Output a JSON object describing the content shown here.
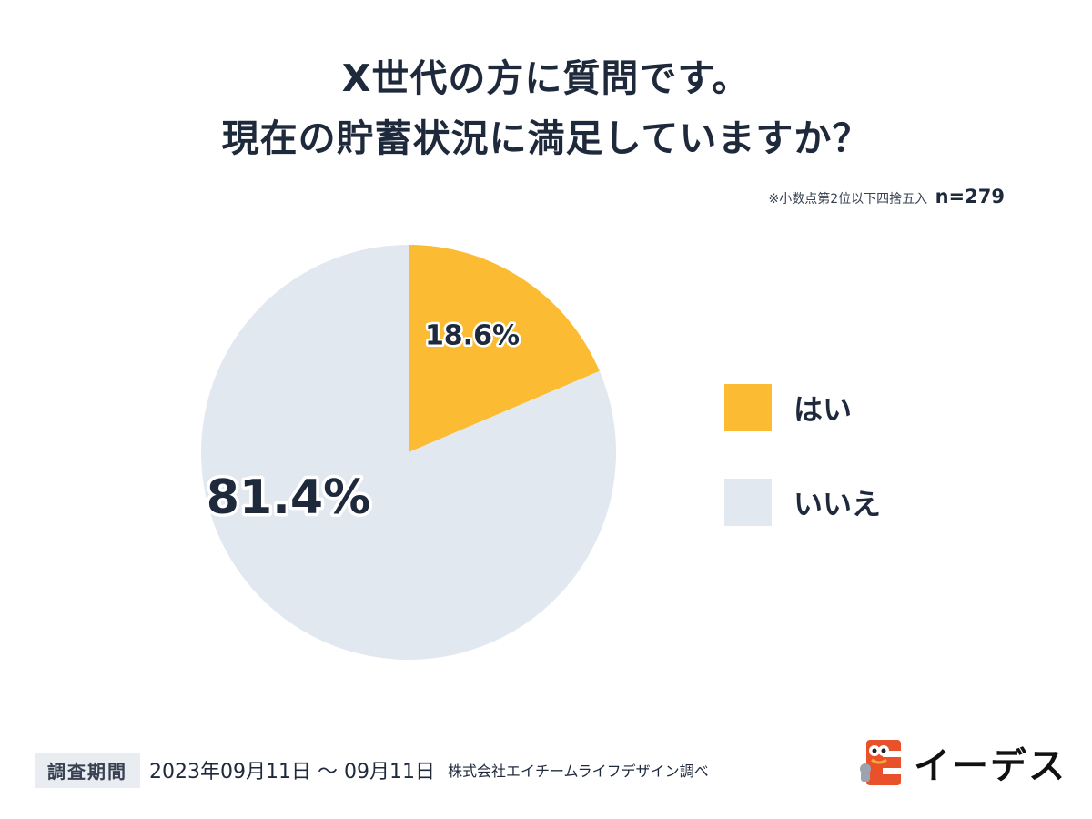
{
  "title": {
    "line1": "X世代の方に質問です。",
    "line2": "現在の貯蓄状況に満足していますか？"
  },
  "note": {
    "rounding": "※小数点第2位以下四捨五入",
    "sample": "n=279"
  },
  "chart_data": {
    "type": "pie",
    "title": "X世代の方に質問です。 現在の貯蓄状況に満足していますか？",
    "start_angle_deg": 0,
    "direction": "clockwise",
    "slices": [
      {
        "label": "はい",
        "value": 18.6,
        "display": "18.6%",
        "color": "#fbbc33"
      },
      {
        "label": "いいえ",
        "value": 81.4,
        "display": "81.4%",
        "color": "#e2e8f0"
      }
    ],
    "legend_position": "right"
  },
  "footer": {
    "period_label": "調査期間",
    "period": "2023年09月11日 〜 09月11日",
    "credit": "株式会社エイチームライフデザイン調べ"
  },
  "brand": {
    "name": "イーデス",
    "mark_colors": [
      "#e8512a",
      "#f6a83b"
    ],
    "icon": "ides-mascot-logo"
  }
}
